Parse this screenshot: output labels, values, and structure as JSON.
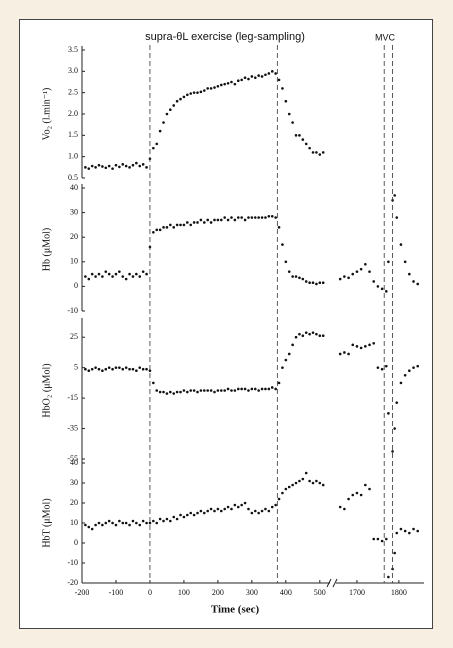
{
  "chart_data": [
    {
      "type": "scatter",
      "ylabel": "Vo₂ (l.min⁻¹)",
      "annotations": [
        "supra-θL exercise (leg-sampling)",
        "MVC"
      ],
      "ylim": [
        0.5,
        3.5
      ],
      "yticks": [
        0.5,
        {
          "value": 1,
          "label": "1.0"
        },
        1.5,
        {
          "value": 2,
          "label": "2.0"
        },
        2.5,
        {
          "value": 3,
          "label": "3.0"
        },
        3.5
      ],
      "x": [
        -190,
        -180,
        -170,
        -160,
        -150,
        -140,
        -130,
        -120,
        -110,
        -100,
        -90,
        -80,
        -70,
        -60,
        -50,
        -40,
        -30,
        -20,
        -10,
        0,
        10,
        20,
        30,
        40,
        50,
        60,
        70,
        80,
        90,
        100,
        110,
        120,
        130,
        140,
        150,
        160,
        170,
        180,
        190,
        200,
        210,
        220,
        230,
        240,
        250,
        260,
        270,
        280,
        290,
        300,
        310,
        320,
        330,
        340,
        350,
        360,
        370,
        380,
        390,
        400,
        410,
        420,
        430,
        440,
        450,
        460,
        470,
        480,
        490,
        500,
        510
      ],
      "values": [
        0.75,
        0.72,
        0.78,
        0.75,
        0.8,
        0.77,
        0.74,
        0.78,
        0.72,
        0.8,
        0.76,
        0.82,
        0.78,
        0.75,
        0.8,
        0.85,
        0.78,
        0.82,
        0.75,
        0.95,
        1.2,
        1.3,
        1.6,
        1.8,
        2.0,
        2.1,
        2.2,
        2.3,
        2.35,
        2.4,
        2.45,
        2.48,
        2.5,
        2.5,
        2.52,
        2.55,
        2.6,
        2.6,
        2.62,
        2.65,
        2.68,
        2.7,
        2.72,
        2.75,
        2.7,
        2.78,
        2.8,
        2.85,
        2.82,
        2.88,
        2.85,
        2.9,
        2.88,
        2.92,
        2.95,
        3.0,
        2.95,
        2.8,
        2.6,
        2.3,
        2.0,
        1.8,
        1.5,
        1.5,
        1.4,
        1.3,
        1.2,
        1.1,
        1.1,
        1.05,
        1.1
      ],
      "color": "#111111"
    },
    {
      "type": "scatter",
      "ylabel": "Hb (μMol)",
      "ylim": [
        -10,
        40
      ],
      "yticks": [
        -10,
        0,
        10,
        20,
        30,
        40
      ],
      "x": [
        -190,
        -180,
        -170,
        -160,
        -150,
        -140,
        -130,
        -120,
        -110,
        -100,
        -90,
        -80,
        -70,
        -60,
        -50,
        -40,
        -30,
        -20,
        -10,
        0,
        10,
        20,
        30,
        40,
        50,
        60,
        70,
        80,
        90,
        100,
        110,
        120,
        130,
        140,
        150,
        160,
        170,
        180,
        190,
        200,
        210,
        220,
        230,
        240,
        250,
        260,
        270,
        280,
        290,
        300,
        310,
        320,
        330,
        340,
        350,
        360,
        370,
        380,
        390,
        400,
        410,
        420,
        430,
        440,
        450,
        460,
        470,
        480,
        490,
        500,
        510,
        1660,
        1670,
        1680,
        1690,
        1700,
        1710,
        1720,
        1730,
        1740,
        1750,
        1760,
        1770,
        1775,
        1785,
        1790,
        1795,
        1805,
        1815,
        1825,
        1835,
        1845
      ],
      "values": [
        4,
        3,
        5,
        4,
        5,
        4,
        6,
        5,
        4,
        5,
        6,
        4,
        3,
        5,
        4,
        5,
        4,
        6,
        5,
        16,
        22,
        23,
        23,
        24,
        24,
        25,
        24,
        25,
        25,
        25,
        26,
        25,
        26,
        26,
        27,
        26,
        27,
        26,
        27,
        27,
        27,
        28,
        27,
        28,
        27,
        28,
        28,
        27,
        28,
        28,
        28,
        28,
        28,
        28,
        28.5,
        28.5,
        28,
        24,
        17,
        10,
        6,
        4,
        4,
        3.5,
        3,
        2,
        1.5,
        1.5,
        1,
        1.5,
        1.5,
        3,
        4,
        3.5,
        5,
        6,
        7,
        9,
        6,
        2,
        0,
        -1,
        -2,
        10,
        35,
        37,
        28,
        17,
        10,
        5,
        2,
        1
      ],
      "color": "#111111"
    },
    {
      "type": "scatter",
      "ylabel": "HbO₂ (μMol)",
      "ylim": [
        -55,
        35
      ],
      "yticks": [
        -55,
        -35,
        -15,
        5,
        25
      ],
      "x": [
        -190,
        -180,
        -170,
        -160,
        -150,
        -140,
        -130,
        -120,
        -110,
        -100,
        -90,
        -80,
        -70,
        -60,
        -50,
        -40,
        -30,
        -20,
        -10,
        0,
        10,
        20,
        30,
        40,
        50,
        60,
        70,
        80,
        90,
        100,
        110,
        120,
        130,
        140,
        150,
        160,
        170,
        180,
        190,
        200,
        210,
        220,
        230,
        240,
        250,
        260,
        270,
        280,
        290,
        300,
        310,
        320,
        330,
        340,
        350,
        360,
        370,
        380,
        390,
        400,
        410,
        420,
        430,
        440,
        450,
        460,
        470,
        480,
        490,
        500,
        510,
        1660,
        1670,
        1680,
        1690,
        1700,
        1710,
        1720,
        1730,
        1740,
        1750,
        1760,
        1770,
        1775,
        1785,
        1790,
        1795,
        1805,
        1815,
        1825,
        1835,
        1845
      ],
      "values": [
        4,
        3,
        4,
        5,
        4,
        3,
        4,
        5,
        4,
        5,
        5,
        4,
        5,
        4,
        4,
        3,
        5,
        4,
        4,
        3,
        -5,
        -10,
        -11,
        -11,
        -12,
        -11,
        -12,
        -11,
        -11,
        -10,
        -11,
        -10,
        -10,
        -11,
        -10,
        -10,
        -10,
        -10,
        -11,
        -10,
        -10,
        -10,
        -9,
        -10,
        -10,
        -9,
        -9,
        -9,
        -10,
        -9,
        -9,
        -10,
        -9,
        -9,
        -9,
        -8,
        -9,
        -5,
        5,
        10,
        14,
        20,
        25,
        27,
        26,
        28,
        27,
        28,
        27,
        26,
        26,
        14,
        15,
        14,
        20,
        19,
        18,
        19,
        20,
        21,
        5,
        4,
        6,
        -25,
        -50,
        -35,
        -18,
        -5,
        0,
        3,
        5,
        6
      ],
      "color": "#111111"
    },
    {
      "type": "scatter",
      "ylabel": "HbT (μMol)",
      "xlabel": "Time (sec)",
      "ylim": [
        -20,
        40
      ],
      "yticks": [
        -20,
        -10,
        0,
        10,
        20,
        30,
        40
      ],
      "xlim": [
        -200,
        1860
      ],
      "xbreak": [
        530,
        1650
      ],
      "xticks": [
        -200,
        -100,
        0,
        100,
        200,
        300,
        400,
        500,
        1700,
        1800
      ],
      "reference_lines": [
        0,
        375,
        1765,
        1785
      ],
      "x": [
        -190,
        -180,
        -170,
        -160,
        -150,
        -140,
        -130,
        -120,
        -110,
        -100,
        -90,
        -80,
        -70,
        -60,
        -50,
        -40,
        -30,
        -20,
        -10,
        0,
        10,
        20,
        30,
        40,
        50,
        60,
        70,
        80,
        90,
        100,
        110,
        120,
        130,
        140,
        150,
        160,
        170,
        180,
        190,
        200,
        210,
        220,
        230,
        240,
        250,
        260,
        270,
        280,
        290,
        300,
        310,
        320,
        330,
        340,
        350,
        360,
        370,
        380,
        390,
        400,
        410,
        420,
        430,
        440,
        450,
        460,
        470,
        480,
        490,
        500,
        510,
        1660,
        1670,
        1680,
        1690,
        1700,
        1710,
        1720,
        1730,
        1740,
        1750,
        1760,
        1770,
        1775,
        1785,
        1790,
        1795,
        1805,
        1815,
        1825,
        1835,
        1845
      ],
      "values": [
        9,
        8,
        7,
        9,
        10,
        9,
        10,
        11,
        10,
        9,
        11,
        10,
        10,
        9,
        11,
        10,
        9,
        11,
        10,
        10,
        11,
        10,
        12,
        11,
        12,
        11,
        13,
        12,
        14,
        13,
        14,
        15,
        14,
        15,
        16,
        15,
        16,
        17,
        16,
        17,
        16,
        17,
        18,
        17,
        19,
        18,
        19,
        20,
        17,
        15,
        16,
        15,
        16,
        17,
        16,
        18,
        19,
        22,
        25,
        27,
        28,
        29,
        30,
        31,
        32,
        35,
        31,
        30,
        31,
        30,
        29,
        18,
        17,
        22,
        24,
        25,
        24,
        29,
        27,
        2,
        2,
        1,
        2,
        -17,
        -13,
        -5,
        5,
        7,
        6,
        5,
        7,
        6
      ],
      "color": "#111111"
    }
  ]
}
